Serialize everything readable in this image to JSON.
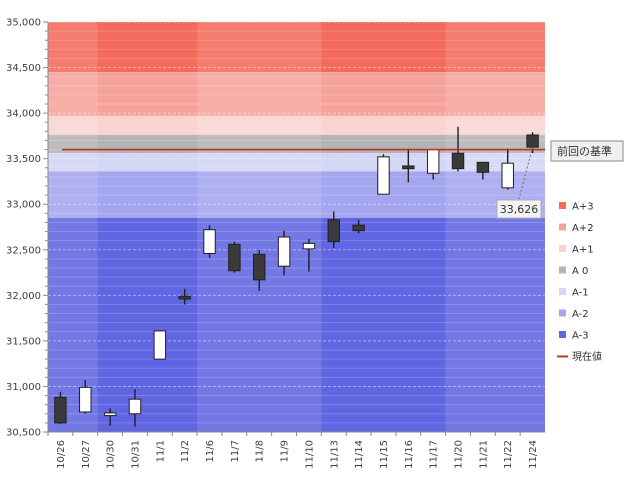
{
  "chart_data": {
    "type": "candlestick",
    "categories": [
      "10/26",
      "10/27",
      "10/30",
      "10/31",
      "11/1",
      "11/2",
      "11/6",
      "11/7",
      "11/8",
      "11/9",
      "11/10",
      "11/13",
      "11/14",
      "11/15",
      "11/16",
      "11/17",
      "11/20",
      "11/21",
      "11/22",
      "11/24"
    ],
    "candles": [
      {
        "o": 30880,
        "h": 30940,
        "l": 30590,
        "c": 30600
      },
      {
        "o": 30720,
        "h": 31070,
        "l": 30700,
        "c": 30990
      },
      {
        "o": 30680,
        "h": 30760,
        "l": 30570,
        "c": 30710
      },
      {
        "o": 30700,
        "h": 30970,
        "l": 30560,
        "c": 30860
      },
      {
        "o": 31300,
        "h": 31610,
        "l": 31300,
        "c": 31610
      },
      {
        "o": 31990,
        "h": 32070,
        "l": 31900,
        "c": 31960
      },
      {
        "o": 32460,
        "h": 32770,
        "l": 32410,
        "c": 32720
      },
      {
        "o": 32560,
        "h": 32590,
        "l": 32250,
        "c": 32270
      },
      {
        "o": 32450,
        "h": 32500,
        "l": 32050,
        "c": 32170
      },
      {
        "o": 32320,
        "h": 32710,
        "l": 32220,
        "c": 32640
      },
      {
        "o": 32510,
        "h": 32620,
        "l": 32260,
        "c": 32570
      },
      {
        "o": 32830,
        "h": 32920,
        "l": 32520,
        "c": 32590
      },
      {
        "o": 32770,
        "h": 32830,
        "l": 32680,
        "c": 32710
      },
      {
        "o": 33110,
        "h": 33550,
        "l": 33110,
        "c": 33520
      },
      {
        "o": 33420,
        "h": 33610,
        "l": 33240,
        "c": 33390
      },
      {
        "o": 33340,
        "h": 33600,
        "l": 33270,
        "c": 33600
      },
      {
        "o": 33560,
        "h": 33850,
        "l": 33360,
        "c": 33390
      },
      {
        "o": 33460,
        "h": 33460,
        "l": 33270,
        "c": 33350
      },
      {
        "o": 33180,
        "h": 33610,
        "l": 33160,
        "c": 33450
      },
      {
        "o": 33760,
        "h": 33790,
        "l": 33560,
        "c": 33626
      }
    ],
    "reference_line": {
      "value": 33600,
      "color": "#c0302a",
      "label": "前回の基準"
    },
    "current_value_label": "33,626",
    "ylim": [
      30500,
      35000
    ],
    "yticks": [
      "30,500",
      "31,000",
      "31,500",
      "32,000",
      "32,500",
      "33,000",
      "33,500",
      "34,000",
      "34,500",
      "35,000"
    ],
    "bands": [
      {
        "name": "A+3",
        "from": 34450,
        "to": 35000,
        "color": "#f46a5c"
      },
      {
        "name": "A+2",
        "from": 33970,
        "to": 34450,
        "color": "#f5a39a"
      },
      {
        "name": "A+1",
        "from": 33760,
        "to": 33970,
        "color": "#f9d4cf"
      },
      {
        "name": "A 0",
        "from": 33560,
        "to": 33760,
        "color": "#b4b4b4"
      },
      {
        "name": "A-1",
        "from": 33360,
        "to": 33560,
        "color": "#d4d6f5"
      },
      {
        "name": "A-2",
        "from": 32850,
        "to": 33360,
        "color": "#a3a6ef"
      },
      {
        "name": "A-3",
        "from": 30500,
        "to": 32850,
        "color": "#6066e2"
      }
    ],
    "legend": [
      {
        "label": "A+3",
        "color": "#f46a5c",
        "kind": "box"
      },
      {
        "label": "A+2",
        "color": "#f5a39a",
        "kind": "box"
      },
      {
        "label": "A+1",
        "color": "#f9d4cf",
        "kind": "box"
      },
      {
        "label": "A 0",
        "color": "#b4b4b4",
        "kind": "box"
      },
      {
        "label": "A-1",
        "color": "#d4d6f5",
        "kind": "box"
      },
      {
        "label": "A-2",
        "color": "#a3a6ef",
        "kind": "box"
      },
      {
        "label": "A-3",
        "color": "#6066e2",
        "kind": "box"
      },
      {
        "label": "現在値",
        "color": "#c0302a",
        "kind": "line"
      }
    ],
    "candle_colors": {
      "up": "#ffffff",
      "down": "#3a3a3a",
      "outline": "#202020"
    }
  }
}
